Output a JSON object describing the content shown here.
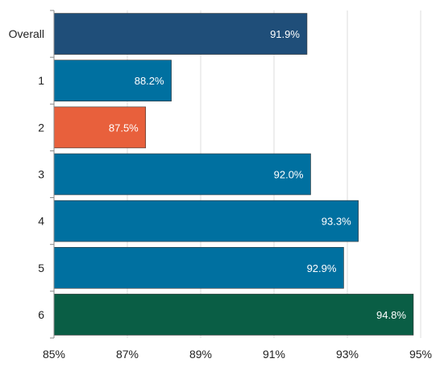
{
  "chart_data": {
    "type": "bar",
    "orientation": "horizontal",
    "categories": [
      "Overall",
      "1",
      "2",
      "3",
      "4",
      "5",
      "6"
    ],
    "values": [
      91.9,
      88.2,
      87.5,
      92.0,
      93.3,
      92.9,
      94.8
    ],
    "value_labels": [
      "91.9%",
      "88.2%",
      "87.5%",
      "92.0%",
      "93.3%",
      "92.9%",
      "94.8%"
    ],
    "bar_colors": [
      "#1f4e79",
      "#0070a0",
      "#e8603c",
      "#0070a0",
      "#0070a0",
      "#0070a0",
      "#0a5e45"
    ],
    "x_ticks": [
      85,
      87,
      89,
      91,
      93,
      95
    ],
    "x_tick_labels": [
      "85%",
      "87%",
      "89%",
      "91%",
      "93%",
      "95%"
    ],
    "xlim": [
      85,
      95
    ],
    "title": "",
    "xlabel": "",
    "ylabel": "",
    "grid": true,
    "legend": "none"
  }
}
